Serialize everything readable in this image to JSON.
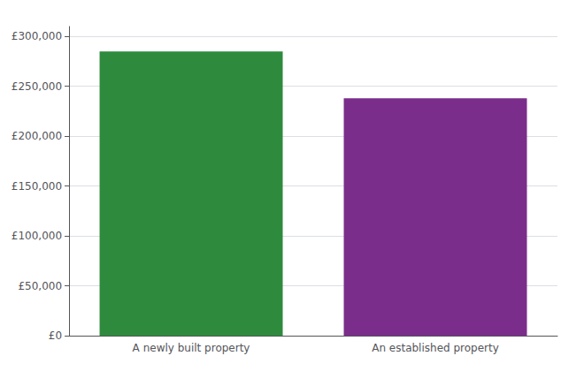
{
  "chart_data": {
    "type": "bar",
    "categories": [
      "A newly built property",
      "An established property"
    ],
    "values": [
      285000,
      238000
    ],
    "colors": [
      "#2e8b3e",
      "#7b2d8b"
    ],
    "ylim": [
      0,
      310000
    ],
    "yticks": [
      {
        "value": 0,
        "label": "£0"
      },
      {
        "value": 50000,
        "label": "£50,000"
      },
      {
        "value": 100000,
        "label": "£100,000"
      },
      {
        "value": 150000,
        "label": "£150,000"
      },
      {
        "value": 200000,
        "label": "£200,000"
      },
      {
        "value": 250000,
        "label": "£250,000"
      },
      {
        "value": 300000,
        "label": "£300,000"
      }
    ],
    "grid": true
  }
}
